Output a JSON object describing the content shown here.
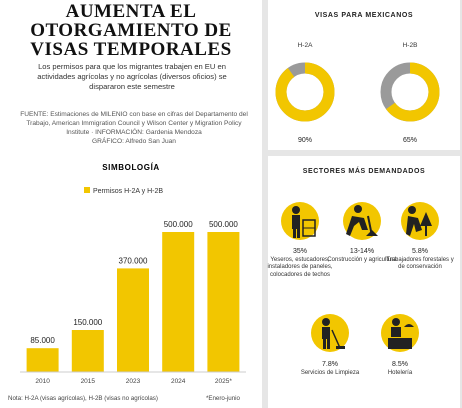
{
  "header": {
    "title": "AUMENTA EL OTORGAMIENTO DE VISAS TEMPORALES",
    "intro": "Los permisos para que los migrantes trabajen en EU en actividades agrícolas y no agrícolas (diversos oficios) se dispararon este semestre",
    "credits": [
      "FUENTE: Estimaciones de MILENIO con base en cifras del Departamento del Trabajo, American Immigration Council y Wilson Center y Migration Policy Institute · INFORMACIÓN: Gardenia Mendoza",
      "GRÁFICO: Alfredo San Juan"
    ]
  },
  "visas": {
    "title": "VISAS PARA MEXICANOS"
  },
  "chart_data": [
    {
      "type": "bar",
      "legend_title": "SIMBOLOGÍA",
      "categories": [
        "2010",
        "2015",
        "2023",
        "2024",
        "2025*"
      ],
      "series": [
        {
          "name": "Permisos H-2A y H-2B",
          "color": "#f2c600",
          "values": [
            85000,
            150000,
            370000,
            500000,
            500000
          ],
          "value_labels": [
            "85.000",
            "150.000",
            "370.000",
            "500.000",
            "500.000"
          ]
        }
      ],
      "note": "Nota: H-2A (visas agrícolas), H-2B (visas no agrícolas)",
      "footnote": "*Enero-junio"
    },
    {
      "type": "pie",
      "label": "H-2A",
      "values": [
        90
      ],
      "value_labels": [
        "90%"
      ],
      "color": "#f2c600",
      "rest_color": "#9a9a9a"
    },
    {
      "type": "pie",
      "label": "H-2B",
      "values": [
        65
      ],
      "value_labels": [
        "65%"
      ],
      "color": "#f2c600",
      "rest_color": "#9a9a9a"
    }
  ],
  "sectors": {
    "title": "SECTORES MÁS DEMANDADOS",
    "items": [
      {
        "percent": "35%",
        "label": "Yeseros, estucadores, instaladores de paneles, colocadores de techos"
      },
      {
        "percent": "13-14%",
        "label": "Construcción y agricultura"
      },
      {
        "percent": "5.8%",
        "label": "Trabajadores forestales y de conservación"
      },
      {
        "percent": "7.8%",
        "label": "Servicios de Limpieza"
      },
      {
        "percent": "8.5%",
        "label": "Hotelería"
      }
    ]
  }
}
